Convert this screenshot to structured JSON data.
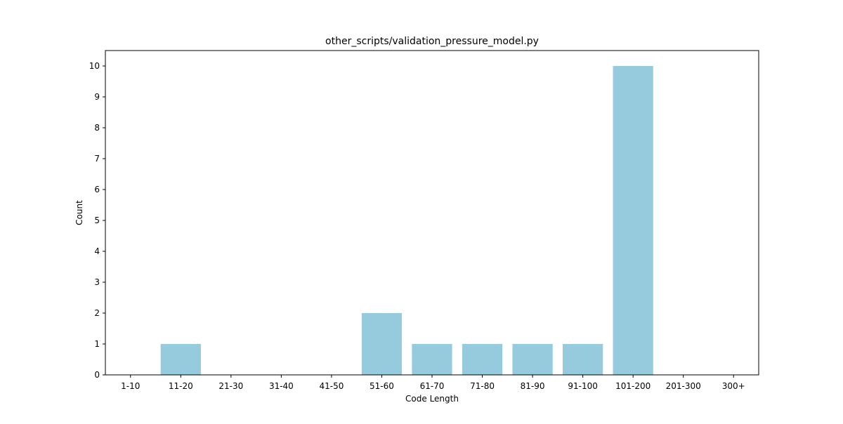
{
  "chart_data": {
    "type": "bar",
    "title": "other_scripts/validation_pressure_model.py",
    "xlabel": "Code Length",
    "ylabel": "Count",
    "categories": [
      "1-10",
      "11-20",
      "21-30",
      "31-40",
      "41-50",
      "51-60",
      "61-70",
      "71-80",
      "81-90",
      "91-100",
      "101-200",
      "201-300",
      "300+"
    ],
    "values": [
      0,
      1,
      0,
      0,
      0,
      2,
      1,
      1,
      1,
      1,
      10,
      0,
      0
    ],
    "ylim": [
      0,
      10.5
    ],
    "yticks": [
      0,
      1,
      2,
      3,
      4,
      5,
      6,
      7,
      8,
      9,
      10
    ],
    "grid": false,
    "legend": "none",
    "bar_color": "#96cadd"
  }
}
